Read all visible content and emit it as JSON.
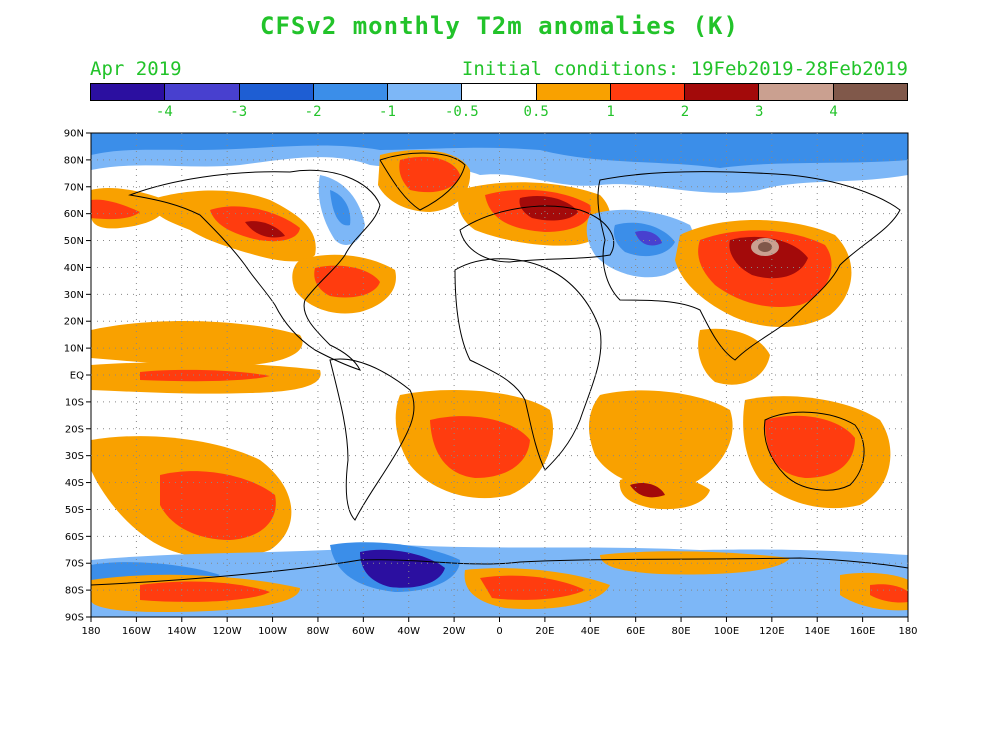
{
  "title": "CFSv2 monthly T2m anomalies (K)",
  "subtitle_left": "Apr 2019",
  "subtitle_right": "Initial conditions: 19Feb2019-28Feb2019",
  "legend": {
    "colors": [
      "#2b0fa0",
      "#4840cf",
      "#1e5ed3",
      "#3b8ee9",
      "#7db7f7",
      "#ffffff",
      "#f9a100",
      "#ff3c0f",
      "#a30a0a",
      "#caa090",
      "#80584a"
    ],
    "labels": [
      "-4",
      "-3",
      "-2",
      "-1",
      "-0.5",
      "0.5",
      "1",
      "2",
      "3",
      "4"
    ]
  },
  "map": {
    "lat_labels": [
      "90N",
      "80N",
      "70N",
      "60N",
      "50N",
      "40N",
      "30N",
      "20N",
      "10N",
      "EQ",
      "10S",
      "20S",
      "30S",
      "40S",
      "50S",
      "60S",
      "70S",
      "80S",
      "90S"
    ],
    "lon_labels": [
      "180",
      "160W",
      "140W",
      "120W",
      "100W",
      "80W",
      "60W",
      "40W",
      "20W",
      "0",
      "20E",
      "40E",
      "60E",
      "80E",
      "100E",
      "120E",
      "140E",
      "160E",
      "180"
    ]
  }
}
